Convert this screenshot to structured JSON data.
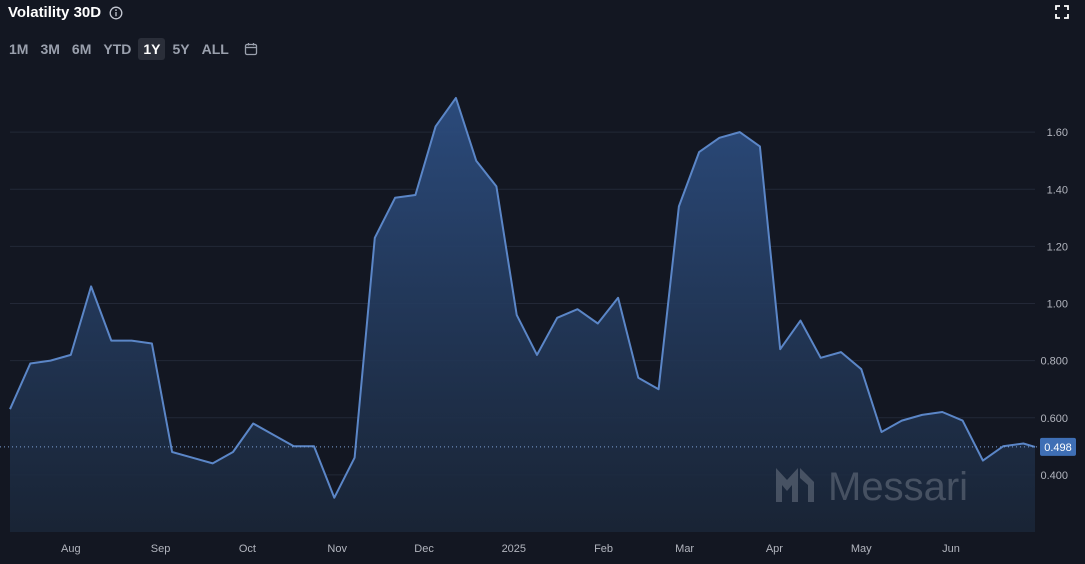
{
  "header": {
    "title": "Volatility 30D"
  },
  "ranges": [
    {
      "label": "1M",
      "active": false
    },
    {
      "label": "3M",
      "active": false
    },
    {
      "label": "6M",
      "active": false
    },
    {
      "label": "YTD",
      "active": false
    },
    {
      "label": "1Y",
      "active": true
    },
    {
      "label": "5Y",
      "active": false
    },
    {
      "label": "ALL",
      "active": false
    }
  ],
  "watermark": "Messari",
  "colors": {
    "background": "#131722",
    "line": "#5b86c7",
    "badge": "#3f6fb5"
  },
  "chart_data": {
    "type": "area",
    "title": "Volatility 30D",
    "ylim": [
      0.2,
      1.8
    ],
    "y_ticks": [
      0.4,
      0.6,
      0.8,
      1.0,
      1.2,
      1.4,
      1.6
    ],
    "y_tick_labels": [
      "0.400",
      "0.600",
      "0.800",
      "1.00",
      "1.20",
      "1.40",
      "1.60"
    ],
    "x_ticks": [
      "Aug",
      "Sep",
      "Oct",
      "Nov",
      "Dec",
      "2025",
      "Feb",
      "Mar",
      "Apr",
      "May",
      "Jun"
    ],
    "x_range": [
      "2024-07-11",
      "2025-06-30"
    ],
    "grid": true,
    "current_value": 0.498,
    "current_value_label": "0.498",
    "series": [
      {
        "x": [
          "2024-07-11",
          "2024-07-18",
          "2024-07-25",
          "2024-08-01",
          "2024-08-08",
          "2024-08-15",
          "2024-08-22",
          "2024-08-29",
          "2024-09-05",
          "2024-09-12",
          "2024-09-19",
          "2024-09-26",
          "2024-10-03",
          "2024-10-10",
          "2024-10-17",
          "2024-10-24",
          "2024-10-31",
          "2024-11-07",
          "2024-11-14",
          "2024-11-21",
          "2024-11-28",
          "2024-12-05",
          "2024-12-12",
          "2024-12-19",
          "2024-12-26",
          "2025-01-02",
          "2025-01-09",
          "2025-01-16",
          "2025-01-23",
          "2025-01-30",
          "2025-02-06",
          "2025-02-13",
          "2025-02-20",
          "2025-02-27",
          "2025-03-06",
          "2025-03-13",
          "2025-03-20",
          "2025-03-27",
          "2025-04-03",
          "2025-04-10",
          "2025-04-17",
          "2025-04-24",
          "2025-05-01",
          "2025-05-08",
          "2025-05-15",
          "2025-05-22",
          "2025-05-29",
          "2025-06-05",
          "2025-06-12",
          "2025-06-19",
          "2025-06-26",
          "2025-06-30"
        ],
        "values": [
          0.63,
          0.79,
          0.8,
          0.82,
          1.06,
          0.87,
          0.87,
          0.86,
          0.48,
          0.46,
          0.44,
          0.48,
          0.58,
          0.54,
          0.5,
          0.5,
          0.32,
          0.46,
          1.23,
          1.37,
          1.38,
          1.62,
          1.72,
          1.5,
          1.41,
          0.96,
          0.82,
          0.95,
          0.98,
          0.93,
          1.02,
          0.74,
          0.7,
          1.34,
          1.53,
          1.58,
          1.6,
          1.55,
          0.84,
          0.94,
          0.81,
          0.83,
          0.77,
          0.55,
          0.59,
          0.61,
          0.62,
          0.59,
          0.45,
          0.5,
          0.51,
          0.498
        ]
      }
    ]
  }
}
